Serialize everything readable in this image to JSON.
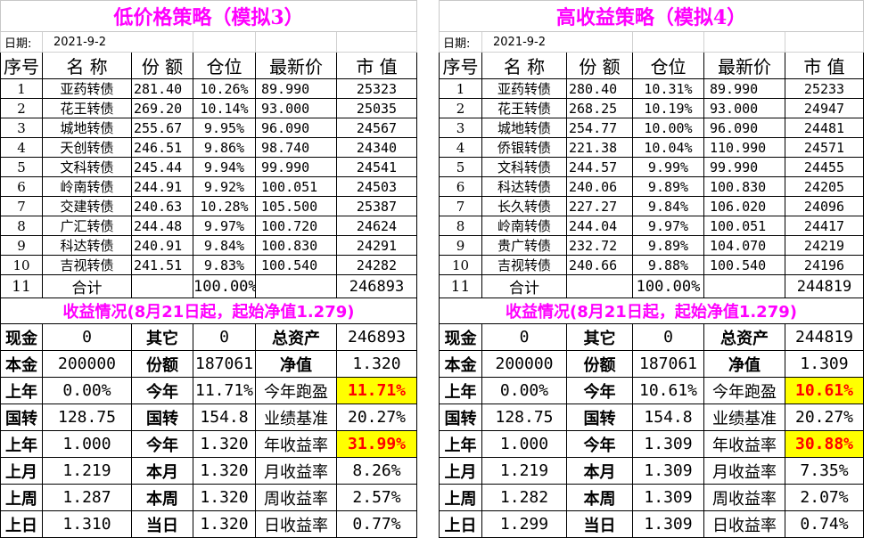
{
  "left": {
    "title": "低价格策略（模拟3）",
    "date_label": "日期:",
    "date_value": "2021-9-2",
    "headers": [
      "序号",
      "名 称",
      "份 额",
      "仓位",
      "最新价",
      "市 值"
    ],
    "rows": [
      [
        "1",
        "亚药转债",
        "281.40",
        "10.26%",
        "89.990",
        "25323"
      ],
      [
        "2",
        "花王转债",
        "269.20",
        "10.14%",
        "93.000",
        "25035"
      ],
      [
        "3",
        "城地转债",
        "255.67",
        "9.95%",
        "96.090",
        "24567"
      ],
      [
        "4",
        "天创转债",
        "246.51",
        "9.86%",
        "98.740",
        "24340"
      ],
      [
        "5",
        "文科转债",
        "245.44",
        "9.94%",
        "99.990",
        "24541"
      ],
      [
        "6",
        "岭南转债",
        "244.91",
        "9.92%",
        "100.051",
        "24503"
      ],
      [
        "7",
        "交建转债",
        "240.63",
        "10.28%",
        "105.500",
        "25387"
      ],
      [
        "8",
        "广汇转债",
        "244.48",
        "9.97%",
        "100.720",
        "24624"
      ],
      [
        "9",
        "科达转债",
        "240.91",
        "9.84%",
        "100.830",
        "24291"
      ],
      [
        "10",
        "吉视转债",
        "241.51",
        "9.83%",
        "100.540",
        "24282"
      ]
    ],
    "total": {
      "no": "11",
      "label": "合计",
      "position": "100.00%",
      "value": "246893"
    },
    "summary_title": "收益情况(8月21日起，起始净值1.279)",
    "summary": [
      [
        "现金",
        "0",
        "其它",
        "0",
        "总资产",
        "246893"
      ],
      [
        "本金",
        "200000",
        "份额",
        "187061",
        "净值",
        "1.320"
      ],
      [
        "上年",
        "0.00%",
        "今年",
        "11.71%",
        "今年跑盈",
        "11.71%"
      ],
      [
        "国转",
        "128.75",
        "国转",
        "154.8",
        "业绩基准",
        "20.27%"
      ],
      [
        "上年",
        "1.000",
        "今年",
        "1.320",
        "年收益率",
        "31.99%"
      ],
      [
        "上月",
        "1.219",
        "本月",
        "1.320",
        "月收益率",
        "8.26%"
      ],
      [
        "上周",
        "1.287",
        "本周",
        "1.320",
        "周收益率",
        "2.57%"
      ],
      [
        "上日",
        "1.310",
        "当日",
        "1.320",
        "日收益率",
        "0.77%"
      ]
    ]
  },
  "right": {
    "title": "高收益策略（模拟4）",
    "date_label": "日期:",
    "date_value": "2021-9-2",
    "headers": [
      "序号",
      "名 称",
      "份 额",
      "仓位",
      "最新价",
      "市 值"
    ],
    "rows": [
      [
        "1",
        "亚药转债",
        "280.40",
        "10.31%",
        "89.990",
        "25233"
      ],
      [
        "2",
        "花王转债",
        "268.25",
        "10.19%",
        "93.000",
        "24947"
      ],
      [
        "3",
        "城地转债",
        "254.77",
        "10.00%",
        "96.090",
        "24481"
      ],
      [
        "4",
        "侨银转债",
        "221.38",
        "10.04%",
        "110.990",
        "24571"
      ],
      [
        "5",
        "文科转债",
        "244.57",
        "9.99%",
        "99.990",
        "24455"
      ],
      [
        "6",
        "科达转债",
        "240.06",
        "9.89%",
        "100.830",
        "24205"
      ],
      [
        "7",
        "长久转债",
        "227.27",
        "9.84%",
        "106.020",
        "24096"
      ],
      [
        "8",
        "岭南转债",
        "244.04",
        "9.97%",
        "100.051",
        "24417"
      ],
      [
        "9",
        "贵广转债",
        "232.72",
        "9.89%",
        "104.070",
        "24219"
      ],
      [
        "10",
        "吉视转债",
        "240.66",
        "9.88%",
        "100.540",
        "24196"
      ]
    ],
    "total": {
      "no": "11",
      "label": "合计",
      "position": "100.00%",
      "value": "244819"
    },
    "summary_title": "收益情况(8月21日起，起始净值1.279)",
    "summary": [
      [
        "现金",
        "0",
        "其它",
        "0",
        "总资产",
        "244819"
      ],
      [
        "本金",
        "200000",
        "份额",
        "187061",
        "净值",
        "1.309"
      ],
      [
        "上年",
        "0.00%",
        "今年",
        "10.61%",
        "今年跑盈",
        "10.61%"
      ],
      [
        "国转",
        "128.75",
        "国转",
        "154.8",
        "业绩基准",
        "20.27%"
      ],
      [
        "上年",
        "1.000",
        "今年",
        "1.309",
        "年收益率",
        "30.88%"
      ],
      [
        "上月",
        "1.219",
        "本月",
        "1.309",
        "月收益率",
        "7.35%"
      ],
      [
        "上周",
        "1.282",
        "本周",
        "1.309",
        "周收益率",
        "2.07%"
      ],
      [
        "上日",
        "1.299",
        "当日",
        "1.309",
        "日收益率",
        "0.74%"
      ]
    ]
  },
  "colors": {
    "title": "#ff00ff",
    "highlight_bg": "#ffff00",
    "highlight_text": "#ff0000"
  }
}
